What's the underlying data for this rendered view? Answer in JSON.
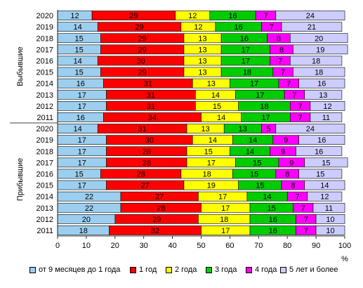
{
  "chart_data": {
    "type": "bar",
    "orientation": "horizontal",
    "stacked": true,
    "xlabel": "%",
    "xlim": [
      0,
      100
    ],
    "xticks": [
      "0",
      "10",
      "20",
      "30",
      "40",
      "50",
      "60",
      "70",
      "80",
      "90",
      "100"
    ],
    "grid": false,
    "legend_position": "bottom",
    "groups": [
      {
        "label": "Выбывшие",
        "categories": [
          "2020",
          "2019",
          "2018",
          "2017",
          "2016",
          "2015",
          "2014",
          "2013",
          "2012",
          "2011"
        ]
      },
      {
        "label": "Прибывшие",
        "categories": [
          "2020",
          "2019",
          "2018",
          "2017",
          "2016",
          "2015",
          "2014",
          "2013",
          "2012",
          "2011"
        ]
      }
    ],
    "series": [
      {
        "name": "от 9 месяцев до 1 года",
        "color": "#9ccfef",
        "values": [
          12,
          14,
          15,
          15,
          14,
          15,
          16,
          17,
          17,
          16,
          14,
          17,
          17,
          17,
          15,
          17,
          22,
          22,
          20,
          18
        ],
        "labels": [
          "12",
          "14",
          "15",
          "15",
          "14",
          "15",
          "16",
          "17",
          "17",
          "16",
          "14",
          "17",
          "17",
          "17",
          "15",
          "17",
          "22",
          "22",
          "20",
          "18"
        ]
      },
      {
        "name": "1 год",
        "color": "#ff0000",
        "values": [
          29,
          29,
          29,
          29,
          30,
          29,
          31,
          31,
          31,
          34,
          31,
          30,
          28,
          28,
          28,
          27,
          27,
          28,
          29,
          32
        ],
        "labels": [
          "29",
          "29",
          "29",
          "29",
          "30",
          "29",
          "31",
          "31",
          "31",
          "34",
          "31",
          "30",
          "28",
          "28",
          "28",
          "27",
          "27",
          "28",
          "29",
          "32"
        ]
      },
      {
        "name": "2 года",
        "color": "#ffff00",
        "values": [
          12,
          12,
          13,
          13,
          13,
          13,
          13,
          14,
          15,
          14,
          13,
          14,
          15,
          17,
          18,
          19,
          17,
          17,
          18,
          17
        ],
        "labels": [
          "12",
          "12",
          "13",
          "13",
          "13",
          "13",
          "13",
          "14",
          "15",
          "14",
          "13",
          "14",
          "15",
          "17",
          "18",
          "19",
          "17",
          "17",
          "18",
          "17"
        ]
      },
      {
        "name": "3 года",
        "color": "#00cc00",
        "values": [
          16,
          16,
          16,
          17,
          17,
          18,
          17,
          17,
          18,
          17,
          13,
          14,
          14,
          15,
          15,
          15,
          14,
          15,
          16,
          16
        ],
        "labels": [
          "16",
          "16",
          "16",
          "17",
          "17",
          "18",
          "17",
          "17",
          "18",
          "17",
          "13",
          "14",
          "14",
          "15",
          "15",
          "15",
          "14",
          "15",
          "16",
          "16"
        ]
      },
      {
        "name": "4 года",
        "color": "#ff00ff",
        "values": [
          7,
          7,
          8,
          8,
          7,
          7,
          7,
          7,
          7,
          7,
          5,
          9,
          9,
          9,
          8,
          8,
          7,
          7,
          7,
          7
        ],
        "labels": [
          "7",
          "7",
          "8",
          "8",
          "7",
          "7",
          "7",
          "7",
          "7",
          "7",
          "5",
          "9",
          "9",
          "9",
          "8",
          "8",
          "7",
          "7",
          "7",
          "7"
        ]
      },
      {
        "name": "5 лет и более",
        "color": "#ccccff",
        "values": [
          24,
          21,
          20,
          19,
          18,
          18,
          16,
          13,
          12,
          11,
          24,
          16,
          16,
          15,
          15,
          14,
          12,
          11,
          10,
          10
        ],
        "labels": [
          "24",
          "21",
          "20",
          "19",
          "18",
          "18",
          "16",
          "13",
          "12",
          "11",
          "24",
          "16",
          "16",
          "15",
          "15",
          "14",
          "12",
          "11",
          "10",
          "10"
        ]
      }
    ]
  }
}
